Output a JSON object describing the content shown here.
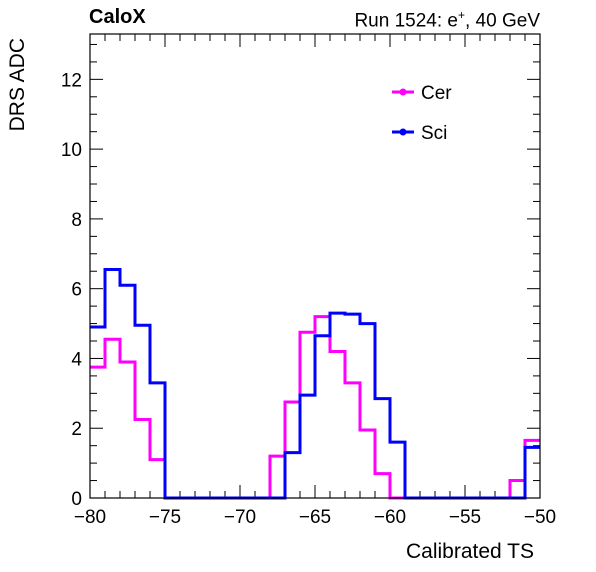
{
  "header": {
    "experiment": "CaloX",
    "run_text": "Run 1524: e",
    "run_sup": "+",
    "run_energy": ", 40 GeV"
  },
  "chart_data": {
    "type": "line",
    "subtype": "step-histogram",
    "xlabel": "Calibrated TS",
    "ylabel": "DRS ADC",
    "xlim": [
      -80,
      -50
    ],
    "ylim": [
      0,
      13.3
    ],
    "x_ticks": [
      -80,
      -75,
      -70,
      -65,
      -60,
      -55,
      -50
    ],
    "y_ticks": [
      0,
      2,
      4,
      6,
      8,
      10,
      12
    ],
    "grid": false,
    "legend_position": "top-right",
    "bin_width": 1,
    "bin_edges_start": -80,
    "series": [
      {
        "name": "Cer",
        "color": "#ff00ff",
        "values": [
          3.75,
          4.55,
          3.9,
          2.25,
          1.1,
          0,
          0,
          0,
          0,
          0,
          0,
          0,
          1.2,
          2.75,
          4.75,
          5.2,
          4.2,
          3.3,
          1.95,
          0.7,
          0,
          0,
          0,
          0,
          0,
          0,
          0,
          0,
          0.5,
          1.65
        ]
      },
      {
        "name": "Sci",
        "color": "#0000ff",
        "values": [
          4.9,
          6.55,
          6.1,
          4.95,
          3.3,
          0,
          0,
          0,
          0,
          0,
          0,
          0,
          0,
          1.3,
          2.95,
          4.65,
          5.3,
          5.27,
          5.0,
          2.85,
          1.6,
          0,
          0,
          0,
          0,
          0,
          0,
          0,
          0,
          1.45
        ]
      }
    ]
  }
}
